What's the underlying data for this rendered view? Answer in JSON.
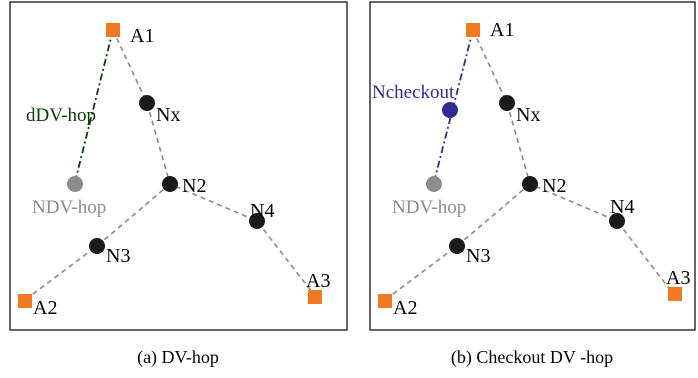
{
  "colors": {
    "anchor": "#f07a24",
    "node": "#1a1a1a",
    "dvhop_estimate": "#8c8c8c",
    "checkout": "#2f2d8e",
    "distance_line": "#0a3d0a",
    "edge": "#8a8a8a",
    "frame": "#000000"
  },
  "panel_a": {
    "caption": "(a) DV-hop",
    "labels": {
      "a1": "A1",
      "a2": "A2",
      "a3": "A3",
      "nx": "Nx",
      "n2": "N2",
      "n3": "N3",
      "n4": "N4",
      "n_dvhop": "NDV-hop",
      "d_dvhop": "dDV-hop"
    }
  },
  "panel_b": {
    "caption": "(b) Checkout DV -hop",
    "labels": {
      "a1": "A1",
      "a2": "A2",
      "a3": "A3",
      "nx": "Nx",
      "n2": "N2",
      "n3": "N3",
      "n4": "N4",
      "n_dvhop": "NDV-hop",
      "n_checkout": "Ncheckout"
    }
  }
}
